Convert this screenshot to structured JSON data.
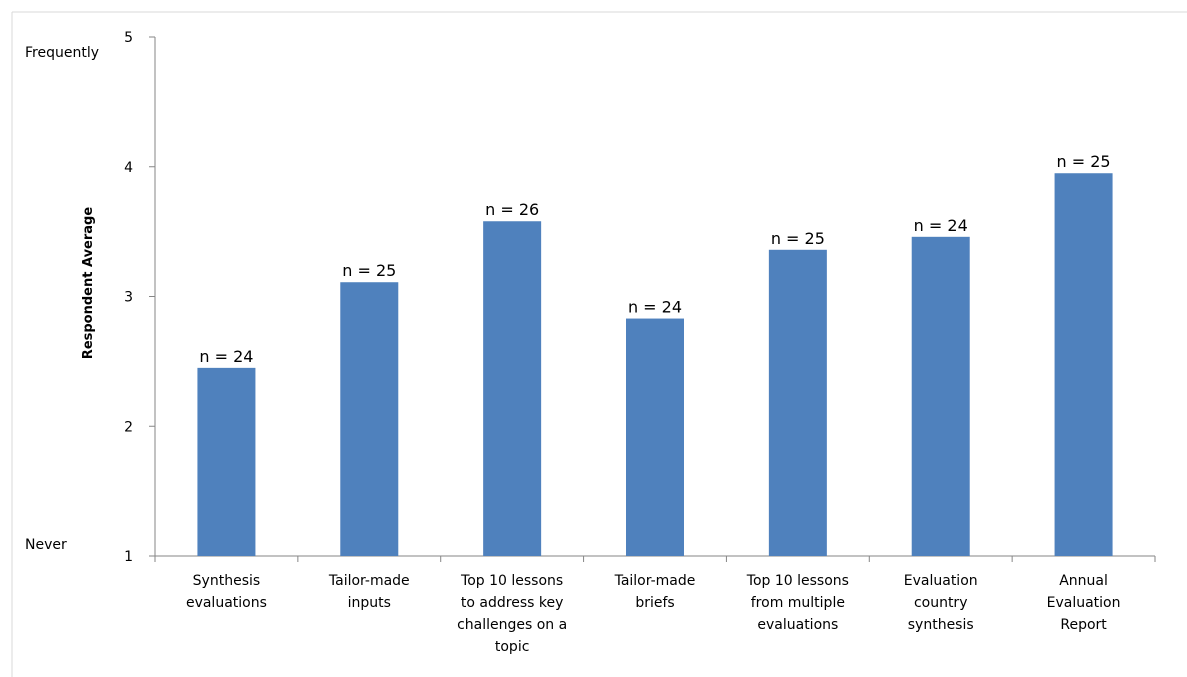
{
  "chart_data": {
    "type": "bar",
    "categories": [
      [
        "Synthesis",
        "evaluations"
      ],
      [
        "Tailor-made",
        "inputs"
      ],
      [
        "Top 10 lessons",
        "to address key",
        "challenges on a",
        "topic"
      ],
      [
        "Tailor-made",
        "briefs"
      ],
      [
        "Top 10 lessons",
        "from multiple",
        "evaluations"
      ],
      [
        "Evaluation",
        "country",
        "synthesis"
      ],
      [
        "Annual",
        "Evaluation",
        "Report"
      ]
    ],
    "values": [
      2.45,
      3.11,
      3.58,
      2.83,
      3.36,
      3.46,
      3.95
    ],
    "annotations": [
      "n = 24",
      "n = 25",
      "n = 26",
      "n = 24",
      "n = 25",
      "n = 24",
      "n = 25"
    ],
    "title": "",
    "xlabel": "",
    "ylabel": "Respondent Average",
    "ylim": [
      1,
      5
    ],
    "yticks": [
      "1",
      "2",
      "3",
      "4",
      "5"
    ],
    "scale_labels": {
      "top": "Frequently",
      "bottom": "Never"
    },
    "bar_color": "#4F81BD",
    "grid": false,
    "legend": "none"
  }
}
